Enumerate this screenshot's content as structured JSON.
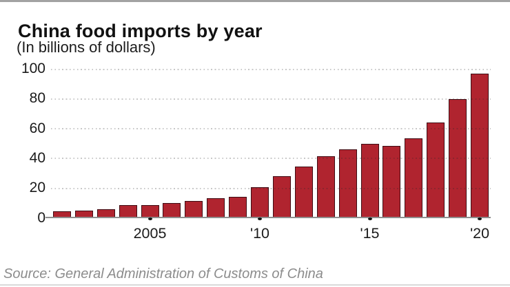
{
  "header": {
    "title": "China food imports by year",
    "subtitle": "(In billions of dollars)"
  },
  "footer": {
    "source": "Source: General Administration of Customs of China"
  },
  "colors": {
    "bar_fill": "#b0242f",
    "bar_stroke": "rgba(42,8,14,0.85)",
    "axis_line": "#8f8f8f",
    "grid_dots": "rgba(40,40,40,0.26)",
    "top_rule": "#a2a2a2",
    "bottom_rule": "#d9d9d9",
    "source_text": "#8c8c8c"
  },
  "chart_data": {
    "type": "bar",
    "title": "China food imports by year",
    "subtitle": "(In billions of dollars)",
    "xlabel": "",
    "ylabel": "",
    "categories": [
      2001,
      2002,
      2003,
      2004,
      2005,
      2006,
      2007,
      2008,
      2009,
      2010,
      2011,
      2012,
      2013,
      2014,
      2015,
      2016,
      2017,
      2018,
      2019,
      2020
    ],
    "values": [
      4.5,
      5,
      6,
      9,
      9,
      10,
      11.5,
      13.5,
      14.5,
      21,
      28,
      34.5,
      41.5,
      46,
      50,
      48.5,
      53.5,
      64,
      80,
      97
    ],
    "ylim": [
      0,
      100
    ],
    "y_ticks": [
      0,
      20,
      40,
      60,
      80,
      100
    ],
    "x_tick_marks": [
      {
        "index": 4,
        "label": "2005"
      },
      {
        "index": 9,
        "label": "'10"
      },
      {
        "index": 14,
        "label": "'15"
      },
      {
        "index": 19,
        "label": "'20"
      }
    ],
    "grid": "horizontal dotted",
    "legend_position": "none",
    "source": "Source: General Administration of Customs of China"
  }
}
